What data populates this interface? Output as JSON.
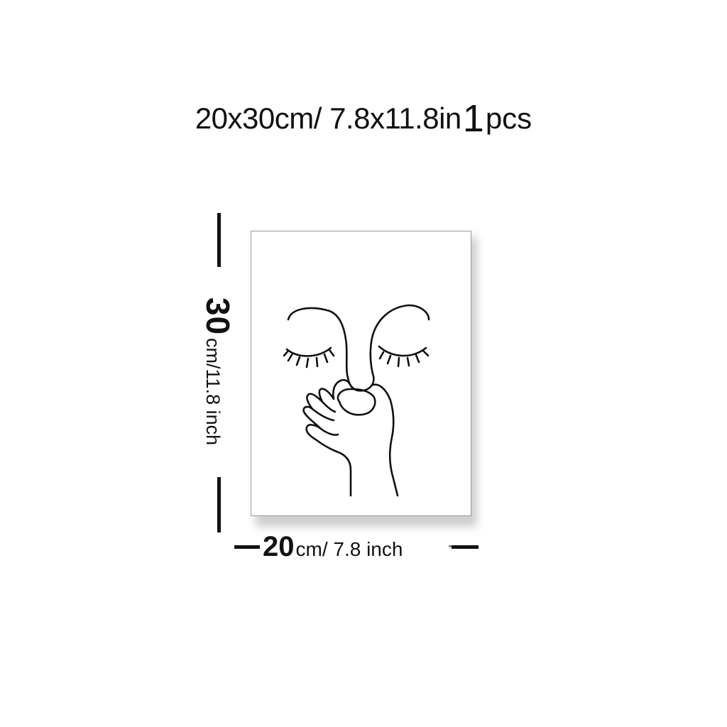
{
  "product": {
    "size_text": "20x30cm/ 7.8x11.8in",
    "quantity_number": "1",
    "quantity_unit": "pcs"
  },
  "height_dimension": {
    "value": "30",
    "unit_text": "cm/11.8 inch"
  },
  "width_dimension": {
    "value": "20",
    "unit_text": "cm/ 7.8 inch"
  },
  "artwork": {
    "description_icon": "line-art-face-with-hand-icon",
    "line_color": "#111111",
    "background_color": "#ffffff"
  },
  "colors": {
    "text": "#111111",
    "background": "#ffffff",
    "shadow": "#bdbdbd"
  }
}
